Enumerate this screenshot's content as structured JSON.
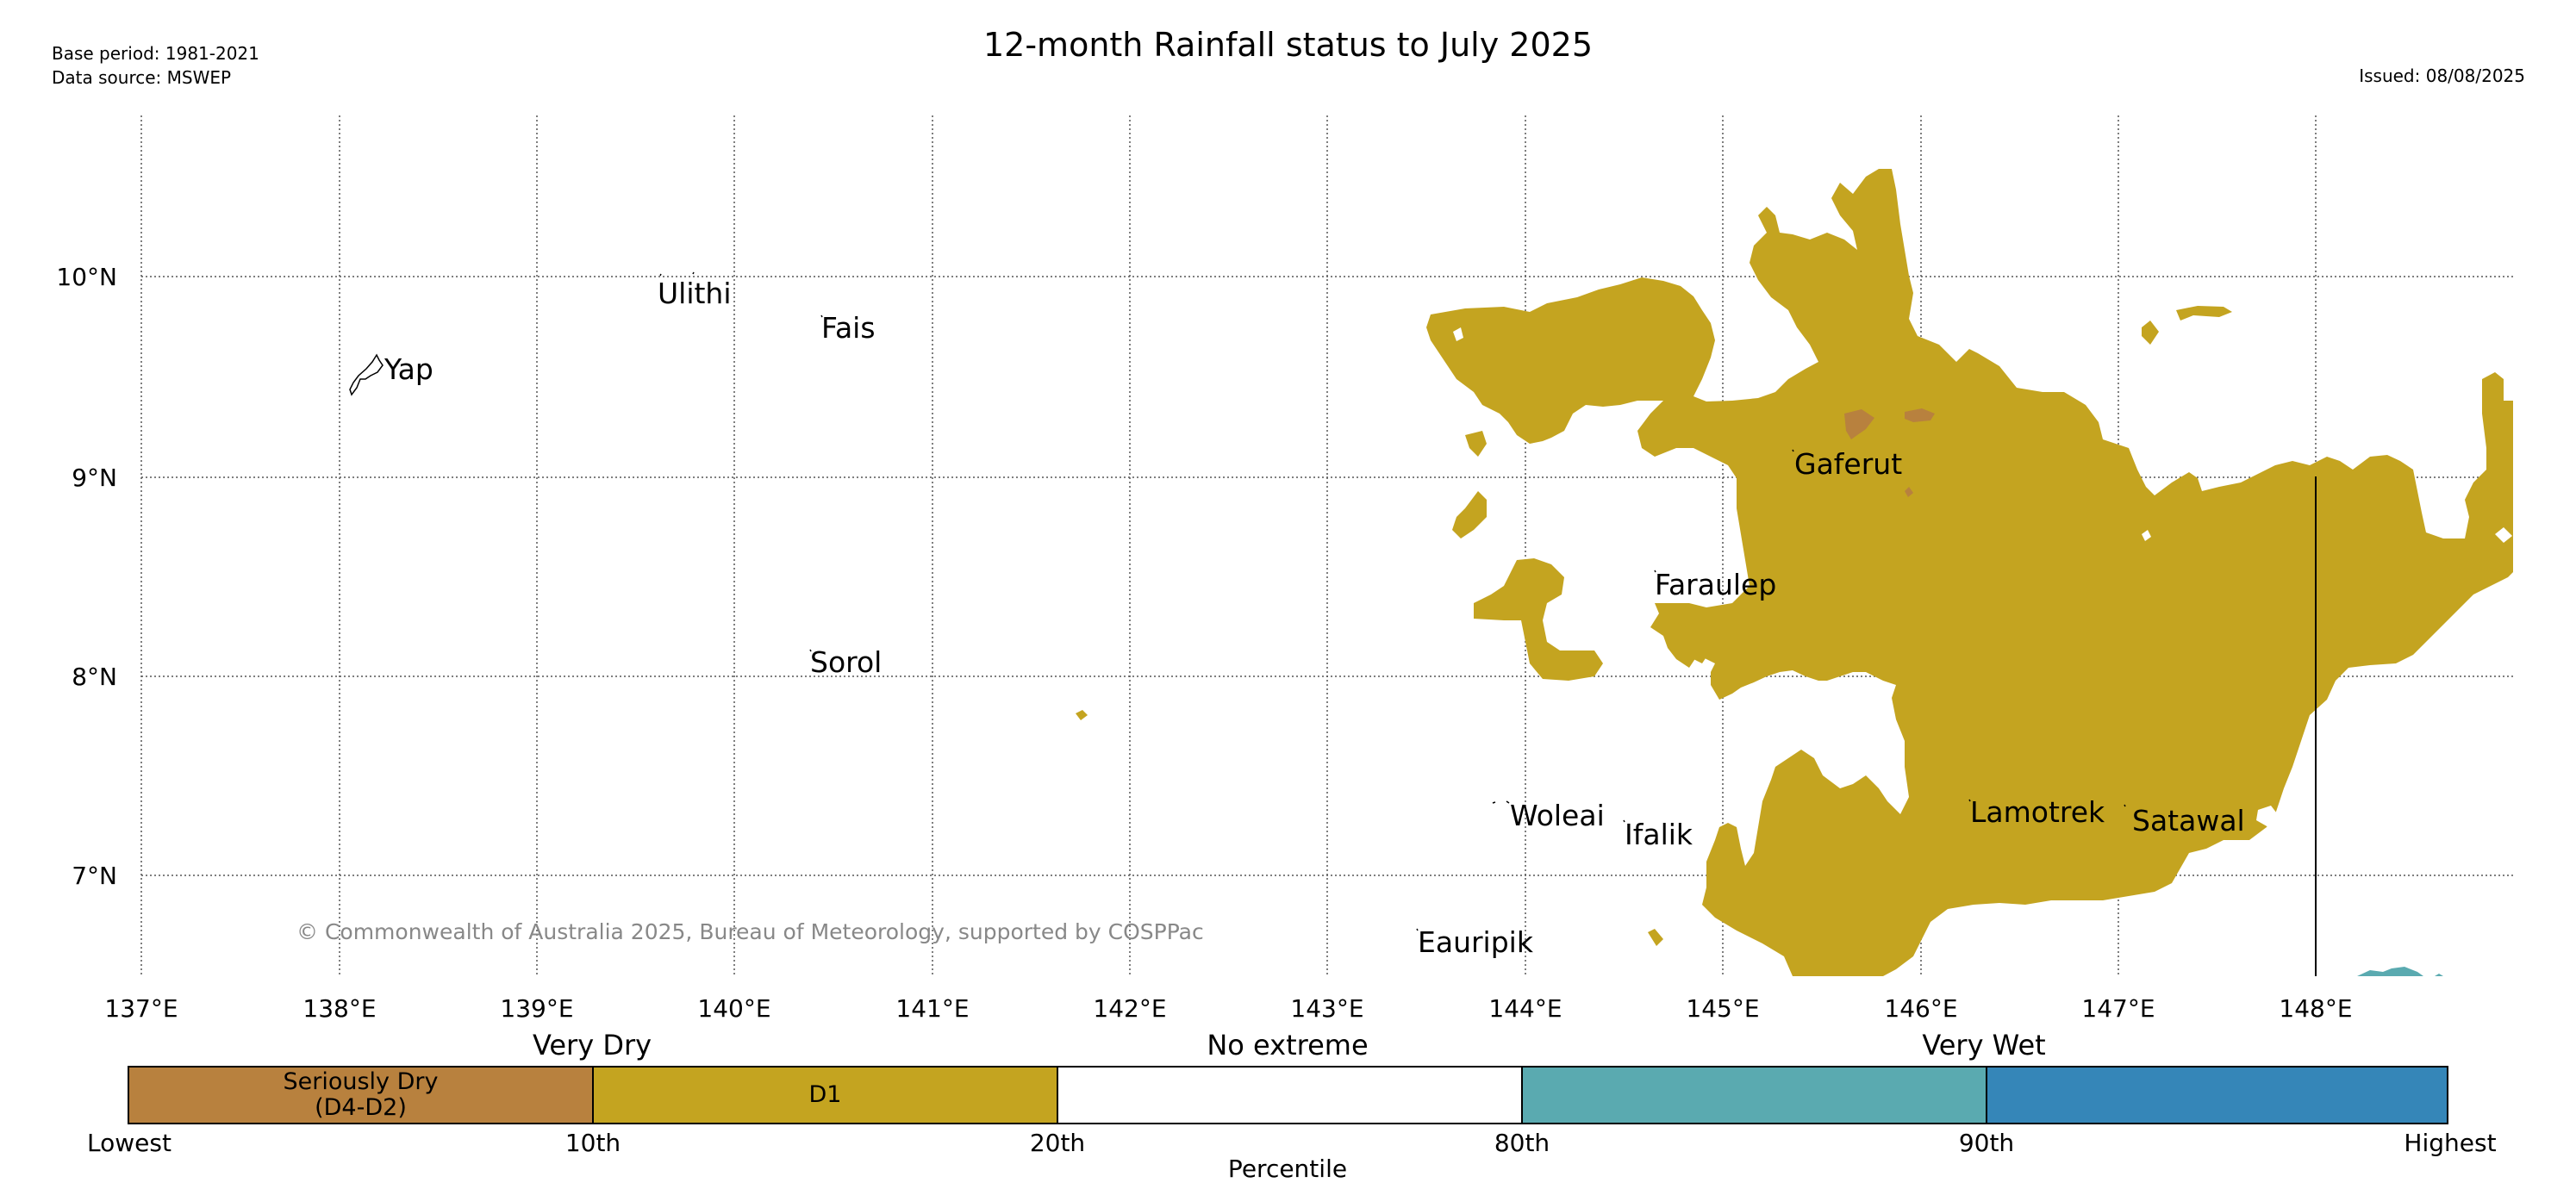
{
  "header": {
    "base_period": "Base period: 1981-2021",
    "data_source": "Data source: MSWEP",
    "title": "12-month Rainfall status to July 2025",
    "issued": "Issued: 08/08/2025"
  },
  "map": {
    "longitude_labels": [
      "137°E",
      "138°E",
      "139°E",
      "140°E",
      "141°E",
      "142°E",
      "143°E",
      "144°E",
      "145°E",
      "146°E",
      "147°E",
      "148°E"
    ],
    "latitude_labels": [
      "10°N",
      "9°N",
      "8°N",
      "7°N"
    ],
    "places": {
      "yap": "Yap",
      "ulithi": "Ulithi",
      "fais": "Fais",
      "sorol": "Sorol",
      "gaferut": "Gaferut",
      "faraulep": "Faraulep",
      "woleai": "Woleai",
      "ifalik": "Ifalik",
      "lamotrek": "Lamotrek",
      "satawal": "Satawal",
      "eauripik": "Eauripik"
    },
    "copyright": "© Commonwealth of Australia 2025, Bureau of Meteorology, supported by COSPPac",
    "colors": {
      "d1": "#c4a420",
      "seriously_dry": "#b8813e",
      "wet": "#5aaab0",
      "very_wet": "#3586b8"
    }
  },
  "colorbar": {
    "categories": {
      "very_dry": "Very Dry",
      "no_extreme": "No extreme",
      "very_wet": "Very Wet"
    },
    "segments": {
      "seriously_dry_line1": "Seriously Dry",
      "seriously_dry_line2": "(D4-D2)",
      "d1": "D1"
    },
    "ticks": {
      "lowest": "Lowest",
      "p10": "10th",
      "p20": "20th",
      "p80": "80th",
      "p90": "90th",
      "highest": "Highest"
    },
    "xlabel": "Percentile",
    "colors": [
      "#b8813e",
      "#c4a420",
      "#ffffff",
      "#5aaab0",
      "#3586b8"
    ]
  }
}
